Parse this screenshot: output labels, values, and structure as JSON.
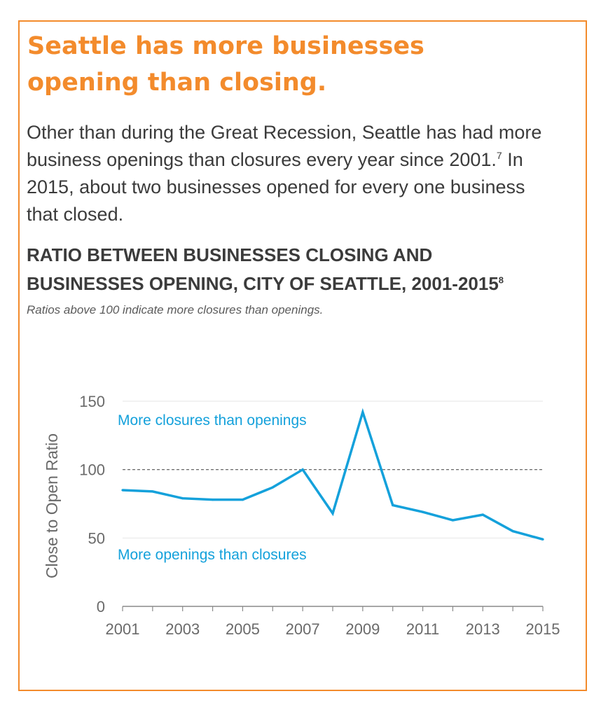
{
  "headline": {
    "line1": "Seattle has more businesses",
    "line2": "opening than closing."
  },
  "body": {
    "part1": "Other than during the Great Recession, Seattle has had more business openings than closures every year since 2001.",
    "footnote": "7",
    "part2": " In 2015, about two businesses opened for every one business that closed."
  },
  "chart_title": {
    "line1": "RATIO BETWEEN BUSINESSES CLOSING AND",
    "line2": "BUSINESSES OPENING, CITY OF SEATTLE, 2001-2015",
    "footnote": "8"
  },
  "chart_note": "Ratios above 100 indicate more closures than openings.",
  "colors": {
    "accent": "#f38b2c",
    "line": "#14a1db",
    "text": "#3b3b3b",
    "axis": "#8a8a8a"
  },
  "chart_data": {
    "type": "line",
    "title": "",
    "xlabel": "",
    "ylabel": "Close to Open Ratio",
    "x": [
      2001,
      2002,
      2003,
      2004,
      2005,
      2006,
      2007,
      2008,
      2009,
      2010,
      2011,
      2012,
      2013,
      2014,
      2015
    ],
    "series": [
      {
        "values": [
          85,
          84,
          79,
          78,
          78,
          87,
          100,
          68,
          142,
          74,
          69,
          63,
          67,
          55,
          49
        ]
      }
    ],
    "xticks": [
      "2001",
      "2003",
      "2005",
      "2007",
      "2009",
      "2011",
      "2013",
      "2015"
    ],
    "yticks": [
      "0",
      "50",
      "100",
      "150"
    ],
    "ylim": [
      0,
      150
    ],
    "xlim": [
      2001,
      2015
    ],
    "reference_line": 100,
    "grid": true,
    "annotations": {
      "above": "More closures than openings",
      "below": "More openings than closures"
    }
  }
}
